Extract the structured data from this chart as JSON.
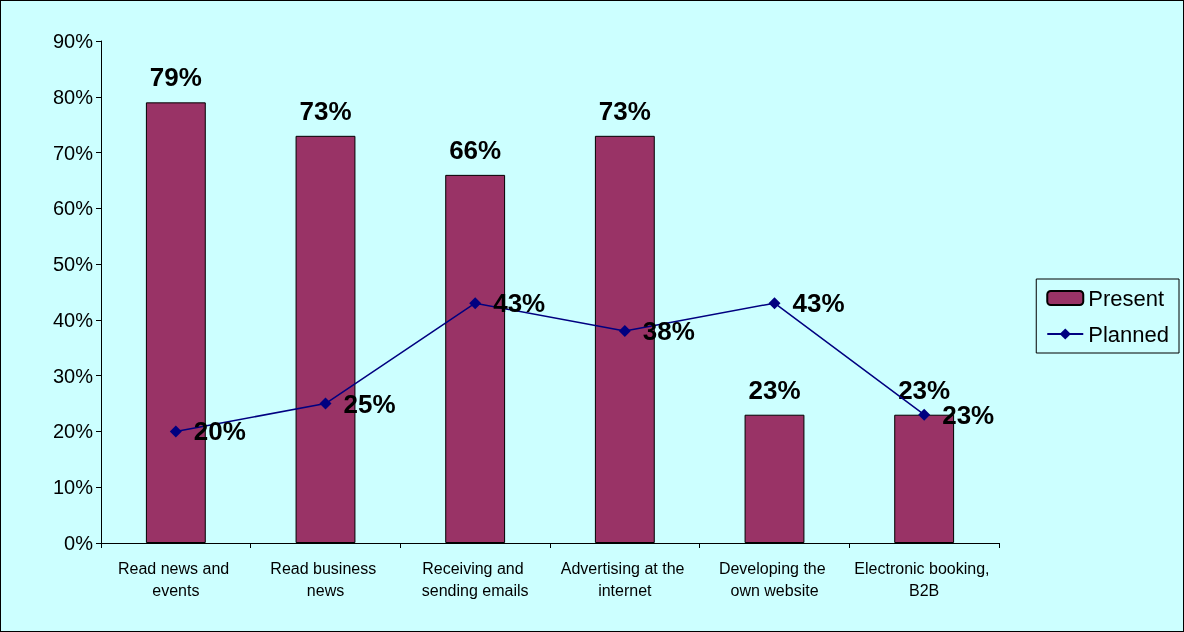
{
  "chart_data": {
    "type": "bar",
    "categories": [
      "Read news and events",
      "Read business news",
      "Receiving and sending emails",
      "Advertising at the internet",
      "Developing the own website",
      "Electronic booking, B2B"
    ],
    "series": [
      {
        "name": "Present",
        "color": "#993366",
        "values": [
          79,
          73,
          66,
          73,
          23,
          23
        ],
        "value_labels": [
          "79%",
          "73%",
          "66%",
          "73%",
          "23%",
          "23%"
        ]
      },
      {
        "name": "Planned",
        "type": "line",
        "color": "#000080",
        "marker": "diamond",
        "values": [
          20,
          25,
          43,
          38,
          43,
          23
        ],
        "value_labels": [
          "20%",
          "25%",
          "43%",
          "38%",
          "43%",
          "23%"
        ]
      }
    ],
    "ylim": [
      0,
      90
    ],
    "yticks": [
      {
        "value": 0,
        "label": "0%"
      },
      {
        "value": 10,
        "label": "10%"
      },
      {
        "value": 20,
        "label": "20%"
      },
      {
        "value": 30,
        "label": "30%"
      },
      {
        "value": 40,
        "label": "40%"
      },
      {
        "value": 50,
        "label": "50%"
      },
      {
        "value": 60,
        "label": "60%"
      },
      {
        "value": 70,
        "label": "70%"
      },
      {
        "value": 80,
        "label": "80%"
      },
      {
        "value": 90,
        "label": "90%"
      }
    ],
    "grid": false,
    "legend": "right"
  }
}
